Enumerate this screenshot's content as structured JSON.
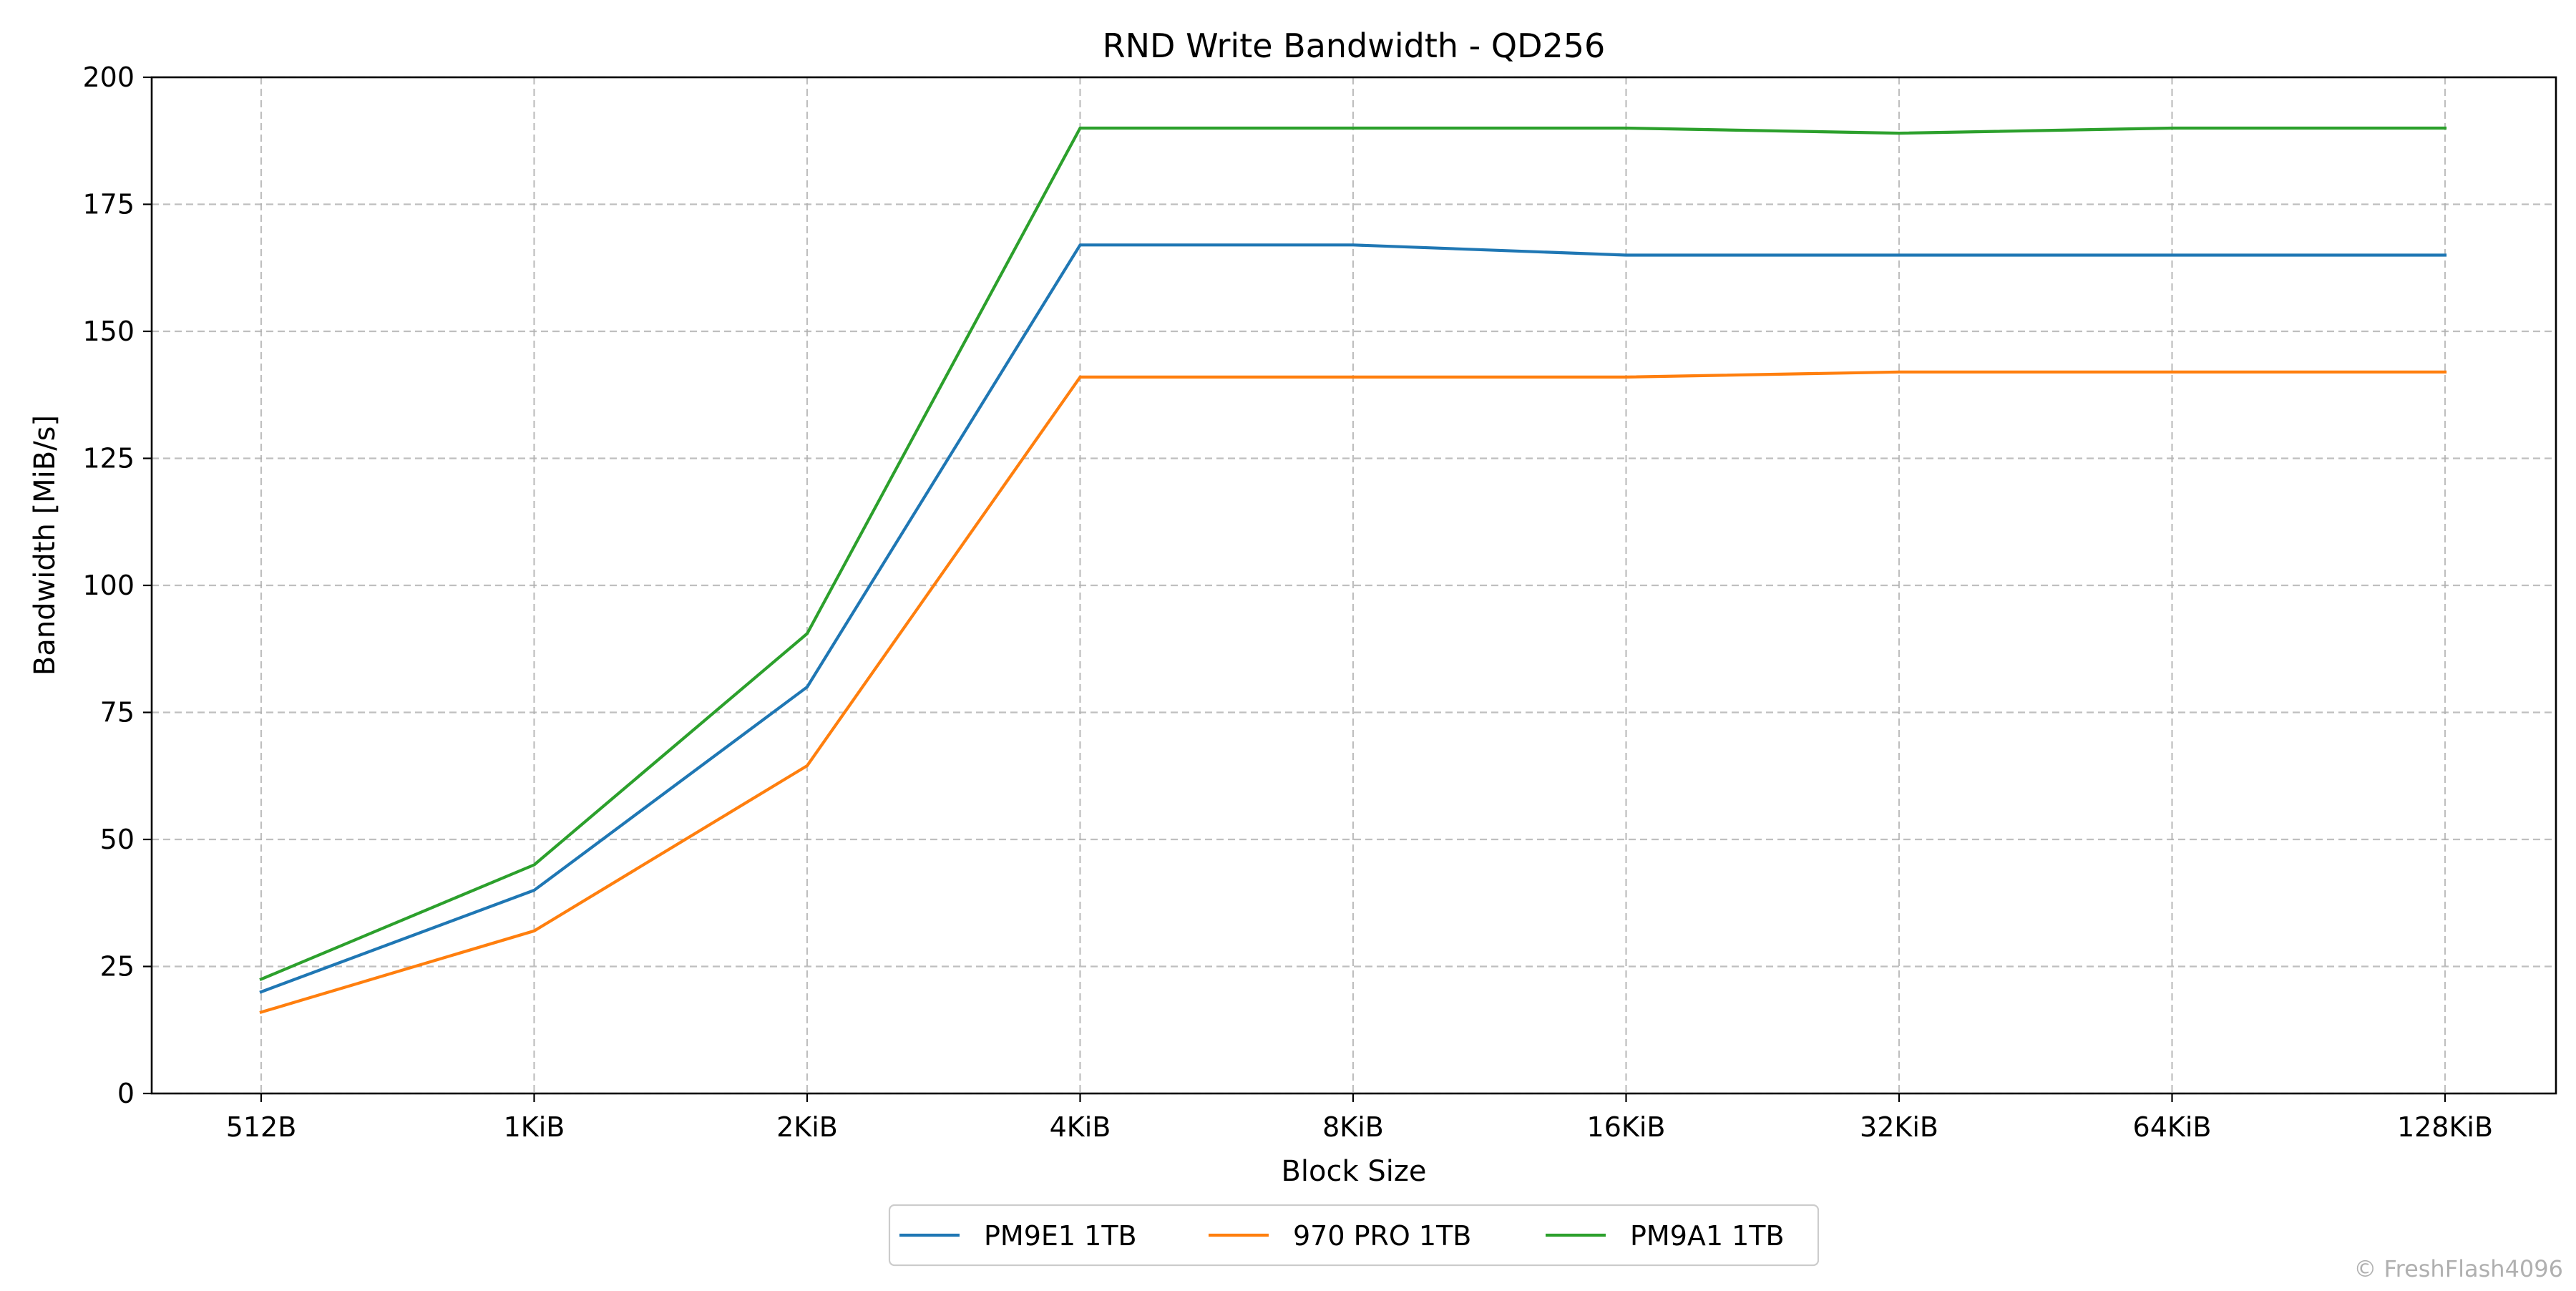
{
  "chart_data": {
    "type": "line",
    "title": "RND Write Bandwidth - QD256",
    "xlabel": "Block Size",
    "ylabel": "Bandwidth [MiB/s]",
    "categories": [
      "512B",
      "1KiB",
      "2KiB",
      "4KiB",
      "8KiB",
      "16KiB",
      "32KiB",
      "64KiB",
      "128KiB"
    ],
    "ylim": [
      0,
      200
    ],
    "yticks": [
      0,
      25,
      50,
      75,
      100,
      125,
      150,
      175,
      200
    ],
    "grid": true,
    "grid_style": "dashed",
    "legend_position": "bottom-center",
    "series": [
      {
        "name": "PM9E1 1TB",
        "color": "#1f77b4",
        "values": [
          20,
          40,
          80,
          167,
          167,
          165,
          165,
          165,
          165
        ]
      },
      {
        "name": "970 PRO 1TB",
        "color": "#ff7f0e",
        "values": [
          16,
          32,
          64.5,
          141,
          141,
          141,
          142,
          142,
          142
        ]
      },
      {
        "name": "PM9A1 1TB",
        "color": "#2ca02c",
        "values": [
          22.5,
          45,
          90.5,
          190,
          190,
          190,
          189,
          190,
          190
        ]
      }
    ]
  },
  "watermark": "© FreshFlash4096"
}
